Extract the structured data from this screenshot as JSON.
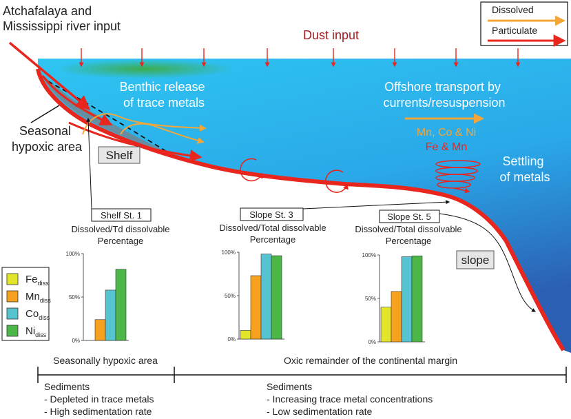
{
  "river_input": {
    "line1": "Atchafalaya and",
    "line2": "Mississippi river input"
  },
  "dust_input": "Dust input",
  "legend": {
    "dissolved": "Dissolved",
    "particulate": "Particulate",
    "dissolved_color": "#F4A636",
    "particulate_color": "#E8261E"
  },
  "benthic": {
    "line1": "Benthic release",
    "line2": "of trace metals"
  },
  "offshore": {
    "line1": "Offshore transport by",
    "line2": "currents/resuspension"
  },
  "metals_dissolved": "Mn, Co & Ni",
  "metals_particulate": "Fe & Mn",
  "settling": {
    "line1": "Settling",
    "line2": "of metals"
  },
  "hypoxic": {
    "line1": "Seasonal",
    "line2": "hypoxic area"
  },
  "shelf_label": "Shelf",
  "slope_label": "slope",
  "stations": [
    {
      "name": "Shelf St. 1",
      "title1": "Dissolved/Td dissolvable",
      "title2": "Percentage"
    },
    {
      "name": "Slope St. 3",
      "title1": "Dissolved/Total dissolvable",
      "title2": "Percentage"
    },
    {
      "name": "Slope St. 5",
      "title1": "Dissolved/Total dissolvable",
      "title2": "Percentage"
    }
  ],
  "element_legend": [
    {
      "base": "Fe",
      "sub": "diss",
      "color": "#E3E52B"
    },
    {
      "base": "Mn",
      "sub": "diss",
      "color": "#F7A21F"
    },
    {
      "base": "Co",
      "sub": "diss",
      "color": "#56C4D0"
    },
    {
      "base": "Ni",
      "sub": "diss",
      "color": "#4CB748"
    }
  ],
  "chart_data": [
    {
      "type": "bar",
      "title": "Shelf St. 1",
      "categories": [
        "Fe",
        "Mn",
        "Co",
        "Ni"
      ],
      "values": [
        0,
        24,
        58,
        82
      ],
      "ylim": [
        0,
        100
      ],
      "yticks": [
        "0%",
        "50%",
        "100%"
      ]
    },
    {
      "type": "bar",
      "title": "Slope St. 3",
      "categories": [
        "Fe",
        "Mn",
        "Co",
        "Ni"
      ],
      "values": [
        10,
        73,
        98,
        96
      ],
      "ylim": [
        0,
        100
      ],
      "yticks": [
        "0%",
        "50%",
        "100%"
      ]
    },
    {
      "type": "bar",
      "title": "Slope St. 5",
      "categories": [
        "Fe",
        "Mn",
        "Co",
        "Ni"
      ],
      "values": [
        40,
        58,
        98,
        99
      ],
      "ylim": [
        0,
        100
      ],
      "yticks": [
        "0%",
        "50%",
        "100%"
      ]
    }
  ],
  "zones": {
    "left_title": "Seasonally hypoxic area",
    "right_title": "Oxic remainder of the continental margin",
    "left_heading": "Sediments",
    "left_line1": "- Depleted in trace metals",
    "left_line2": "- High sedimentation rate",
    "right_heading": "Sediments",
    "right_line1": "- Increasing trace metal concentrations",
    "right_line2": "- Low sedimentation rate"
  }
}
